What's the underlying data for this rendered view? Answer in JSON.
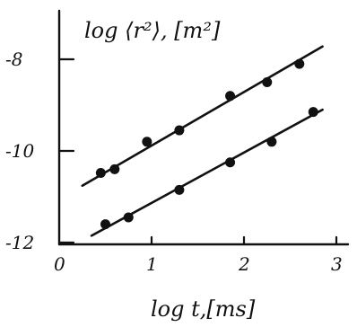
{
  "chart_data": {
    "type": "scatter",
    "title": "",
    "xlabel": "log t,[ms]",
    "ylabel": "log ⟨r²⟩, [m²]",
    "xlim": [
      0,
      3
    ],
    "ylim": [
      -12,
      -6.1
    ],
    "x_ticks": [
      "0",
      "1",
      "2",
      "3"
    ],
    "y_ticks": [
      "-8",
      "-10",
      "-12"
    ],
    "grid": false,
    "legend": "none",
    "series": [
      {
        "points": [
          {
            "x": 0.45,
            "y": -10.48
          },
          {
            "x": 0.6,
            "y": -10.4
          },
          {
            "x": 0.95,
            "y": -9.8
          },
          {
            "x": 1.3,
            "y": -9.55
          },
          {
            "x": 1.85,
            "y": -8.8
          },
          {
            "x": 2.25,
            "y": -8.5
          },
          {
            "x": 2.6,
            "y": -8.1
          }
        ],
        "fit": [
          [
            0.25,
            -10.76
          ],
          [
            2.85,
            -7.72
          ]
        ]
      },
      {
        "points": [
          {
            "x": 0.5,
            "y": -11.6
          },
          {
            "x": 0.75,
            "y": -11.45
          },
          {
            "x": 1.3,
            "y": -10.85
          },
          {
            "x": 1.85,
            "y": -10.25
          },
          {
            "x": 2.3,
            "y": -9.8
          },
          {
            "x": 2.75,
            "y": -9.15
          }
        ],
        "fit": [
          [
            0.35,
            -11.85
          ],
          [
            2.85,
            -9.1
          ]
        ]
      }
    ]
  }
}
